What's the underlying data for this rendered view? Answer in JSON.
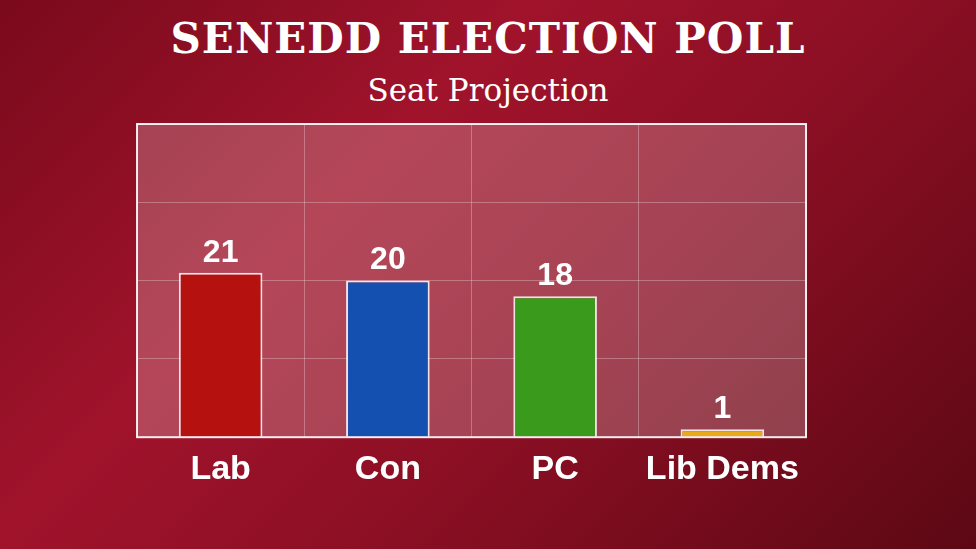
{
  "chart_data": {
    "type": "bar",
    "title": "SENEDD ELECTION POLL",
    "subtitle": "Seat Projection",
    "categories": [
      "Lab",
      "Con",
      "PC",
      "Lib Dems"
    ],
    "values": [
      21,
      20,
      18,
      1
    ],
    "colors": [
      "#b5120f",
      "#1450b0",
      "#3a9a1c",
      "#e8a91a"
    ],
    "ylim": [
      0,
      40
    ],
    "yticks": [
      0,
      10,
      20,
      30,
      40
    ],
    "grid": true,
    "data_labels": true,
    "tick_labels": "x"
  }
}
